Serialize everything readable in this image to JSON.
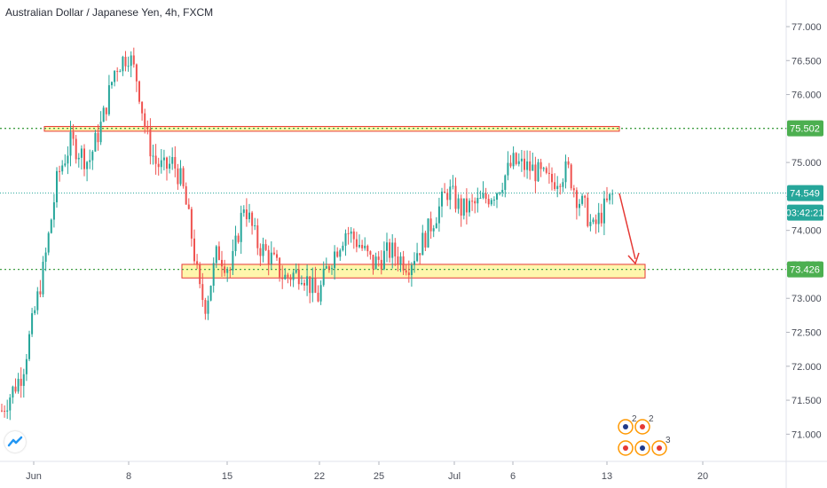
{
  "title": "Australian Dollar / Japanese Yen, 4h, FXCM",
  "colors": {
    "up": "#26a69a",
    "down": "#ef5350",
    "support_fill": "#fff59d",
    "zone_border": "#e53935",
    "level_line": "#43a047",
    "badge_green": "#4caf50",
    "badge_price": "#26a69a",
    "arrow": "#e53935",
    "axis_text": "#4a4e59"
  },
  "chart_data": {
    "type": "candlestick",
    "symbol": "AUDJPY",
    "timeframe": "4h",
    "ylim": [
      70.6,
      77.3
    ],
    "y_ticks": [
      "77.000",
      "76.500",
      "76.000",
      "75.500",
      "75.000",
      "74.500",
      "74.000",
      "73.500",
      "73.000",
      "72.500",
      "72.000",
      "71.500",
      "71.000"
    ],
    "x_ticks": [
      "Jun",
      "8",
      "15",
      "22",
      "25",
      "Jul",
      "6",
      "13",
      "20"
    ],
    "price_path": [
      [
        0,
        71.3
      ],
      [
        25,
        71.9
      ],
      [
        50,
        73.5
      ],
      [
        65,
        74.8
      ],
      [
        80,
        75.3
      ],
      [
        100,
        75.0
      ],
      [
        115,
        75.6
      ],
      [
        130,
        76.4
      ],
      [
        145,
        76.6
      ],
      [
        155,
        76.2
      ],
      [
        165,
        75.4
      ],
      [
        175,
        75.0
      ],
      [
        185,
        74.9
      ],
      [
        195,
        75.0
      ],
      [
        205,
        74.7
      ],
      [
        215,
        74.0
      ],
      [
        225,
        73.1
      ],
      [
        232,
        72.9
      ],
      [
        245,
        73.7
      ],
      [
        260,
        73.4
      ],
      [
        275,
        74.4
      ],
      [
        290,
        73.8
      ],
      [
        305,
        73.6
      ],
      [
        320,
        73.3
      ],
      [
        340,
        73.4
      ],
      [
        358,
        73.0
      ],
      [
        370,
        73.5
      ],
      [
        390,
        74.0
      ],
      [
        405,
        73.8
      ],
      [
        420,
        73.5
      ],
      [
        440,
        73.7
      ],
      [
        460,
        73.5
      ],
      [
        475,
        73.8
      ],
      [
        490,
        74.2
      ],
      [
        505,
        74.6
      ],
      [
        520,
        74.3
      ],
      [
        540,
        74.4
      ],
      [
        560,
        74.6
      ],
      [
        578,
        75.0
      ],
      [
        600,
        74.9
      ],
      [
        620,
        74.7
      ],
      [
        640,
        74.9
      ],
      [
        650,
        74.5
      ],
      [
        660,
        74.3
      ],
      [
        668,
        74.0
      ],
      [
        680,
        74.3
      ],
      [
        692,
        74.55
      ]
    ],
    "levels": [
      {
        "price": 75.502,
        "label": "75.502"
      },
      {
        "price": 73.426,
        "label": "73.426"
      }
    ],
    "current_price": {
      "label": "74.549",
      "countdown": "03:42:21"
    },
    "zones": [
      {
        "name": "resistance",
        "y_top": 75.53,
        "y_bottom": 75.46
      },
      {
        "name": "support",
        "y_top": 73.5,
        "y_bottom": 73.3
      }
    ],
    "event_markers": [
      "2",
      "2",
      "3"
    ]
  }
}
